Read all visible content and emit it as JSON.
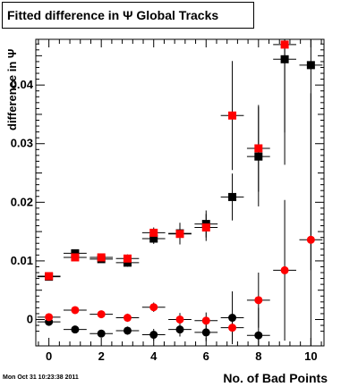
{
  "title": "Fitted difference in Ψ   Global Tracks",
  "timestamp": "Mon Oct 31 10:23:38 2011",
  "colors": {
    "black_series": "#000000",
    "red_series": "#ff0000",
    "axis": "#000000"
  },
  "chart_data": {
    "type": "scatter",
    "title": "Fitted difference in Ψ   Global Tracks",
    "xlabel": "No. of Bad Points",
    "ylabel": "difference in Ψ",
    "xlim": [
      -0.5,
      10.5
    ],
    "ylim": [
      -0.0045,
      0.0478
    ],
    "x_ticks": [
      0,
      2,
      4,
      6,
      8,
      10
    ],
    "x_tick_labels": [
      "0",
      "2",
      "4",
      "6",
      "8",
      "10"
    ],
    "y_ticks": [
      0,
      0.01,
      0.02,
      0.03,
      0.04
    ],
    "y_tick_labels": [
      "0",
      "0.01",
      "0.02",
      "0.03",
      "0.04"
    ],
    "grid": false,
    "legend": "none",
    "series": [
      {
        "marker": "square",
        "color": "#000000",
        "x": [
          0,
          1,
          2,
          3,
          4,
          5,
          6,
          7,
          8,
          9,
          10
        ],
        "y": [
          0.0073,
          0.0113,
          0.0103,
          0.0097,
          0.0138,
          0.0147,
          0.0163,
          0.0209,
          0.0278,
          0.0444,
          0.0434
        ],
        "yerr": [
          0.0002,
          0.0005,
          0.0005,
          0.0007,
          0.0009,
          0.0018,
          0.0023,
          0.004,
          0.0085,
          0.018,
          0.035
        ]
      },
      {
        "marker": "square",
        "color": "#ff0000",
        "x": [
          0,
          1,
          2,
          3,
          4,
          5,
          6,
          7,
          8,
          9,
          10
        ],
        "y": [
          0.0074,
          0.0106,
          0.0106,
          0.0104,
          0.0148,
          0.0146,
          0.0157,
          0.0348,
          0.0292,
          0.0469,
          null
        ],
        "yerr": [
          0.0002,
          0.0004,
          0.0005,
          0.0007,
          0.0009,
          0.0018,
          0.0023,
          0.0093,
          0.0074,
          0.015,
          null
        ]
      },
      {
        "marker": "circle",
        "color": "#000000",
        "x": [
          0,
          1,
          2,
          3,
          4,
          5,
          6,
          7,
          8,
          9,
          10
        ],
        "y": [
          -0.0004,
          -0.0017,
          -0.0024,
          -0.0019,
          -0.0026,
          -0.0017,
          -0.0022,
          0.0003,
          -0.0027,
          null,
          null
        ],
        "yerr": [
          0.0002,
          0.0004,
          0.0006,
          0.0007,
          0.001,
          0.0012,
          0.0015,
          0.0045,
          0.0047,
          null,
          null
        ]
      },
      {
        "marker": "circle",
        "color": "#ff0000",
        "x": [
          0,
          1,
          2,
          3,
          4,
          5,
          6,
          7,
          8,
          9,
          10
        ],
        "y": [
          0.0004,
          0.0016,
          0.0009,
          0.0003,
          0.0021,
          0.0,
          -0.0002,
          -0.0014,
          0.0033,
          0.0084,
          0.0136
        ],
        "yerr": [
          0.0002,
          0.0004,
          0.0005,
          0.0007,
          0.0008,
          0.0011,
          0.0014,
          0.0023,
          0.0047,
          0.012,
          0.025
        ]
      }
    ]
  }
}
